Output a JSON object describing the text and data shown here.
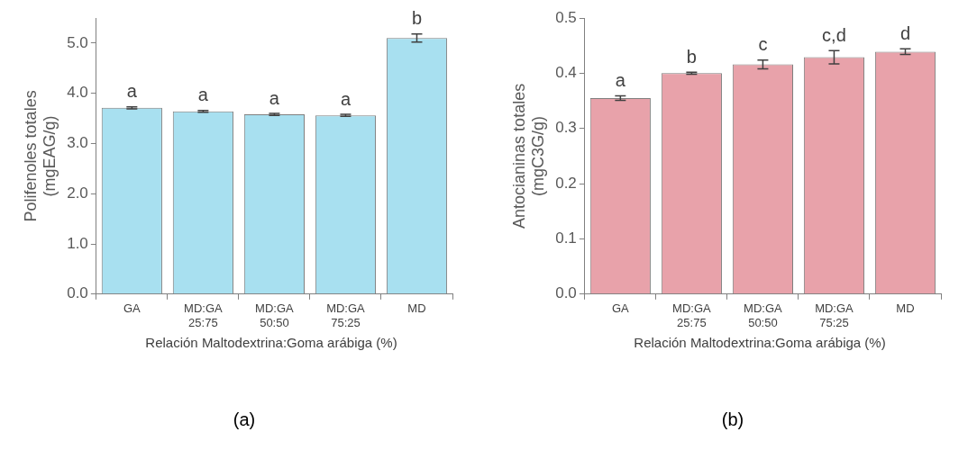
{
  "chart_data": [
    {
      "type": "bar",
      "categories": [
        "GA",
        "MD:GA\n25:75",
        "MD:GA\n50:50",
        "MD:GA\n75:25",
        "MD"
      ],
      "values": [
        3.71,
        3.64,
        3.58,
        3.56,
        5.1
      ],
      "errors": [
        0.02,
        0.02,
        0.02,
        0.02,
        0.08
      ],
      "color": "#a8e0f0",
      "ylabel": "Polifenoles totales\n(mgEAG/g)",
      "xlabel": "Relación Maltodextrina:Goma arábiga (%)",
      "ylim": [
        0,
        5.5
      ],
      "yticks": [
        {
          "value": 0,
          "label": "0.0"
        },
        {
          "value": 1,
          "label": "1.0"
        },
        {
          "value": 2,
          "label": "2.0"
        },
        {
          "value": 3,
          "label": "3.0"
        },
        {
          "value": 4,
          "label": "4.0"
        },
        {
          "value": 5,
          "label": "5.0"
        }
      ],
      "grid": false,
      "annotations": [
        {
          "text": "a",
          "x": "GA",
          "y": 3.73
        },
        {
          "text": "a",
          "x": "MD:GA\n25:75",
          "y": 3.66
        },
        {
          "text": "a",
          "x": "MD:GA\n50:50",
          "y": 3.6
        },
        {
          "text": "a",
          "x": "MD:GA\n75:25",
          "y": 3.58
        },
        {
          "text": "b",
          "x": "MD",
          "y": 5.18
        },
        "(a)"
      ]
    },
    {
      "type": "bar",
      "categories": [
        "GA",
        "MD:GA\n25:75",
        "MD:GA\n50:50",
        "MD:GA\n75:25",
        "MD"
      ],
      "values": [
        0.355,
        0.4,
        0.416,
        0.429,
        0.439
      ],
      "errors": [
        0.004,
        0.002,
        0.008,
        0.012,
        0.005
      ],
      "color": "#e8a2aa",
      "ylabel": "Antocianinas totales\n(mgC3G/g)",
      "xlabel": "Relación Maltodextrina:Goma arábiga (%)",
      "ylim": [
        0,
        0.5
      ],
      "yticks": [
        {
          "value": 0,
          "label": "0.0"
        },
        0.1,
        0.2,
        0.3,
        0.4,
        0.5
      ],
      "grid": false,
      "annotations": [
        {
          "text": "a",
          "x": "GA",
          "y": 0.359
        },
        {
          "text": "b",
          "x": "MD:GA\n25:75",
          "y": 0.402
        },
        {
          "text": "c",
          "x": "MD:GA\n50:50",
          "y": 0.424
        },
        {
          "text": "c,d",
          "x": "MD:GA\n75:25",
          "y": 0.441
        },
        {
          "text": "d",
          "x": "MD",
          "y": 0.444
        },
        "(b)"
      ]
    }
  ]
}
